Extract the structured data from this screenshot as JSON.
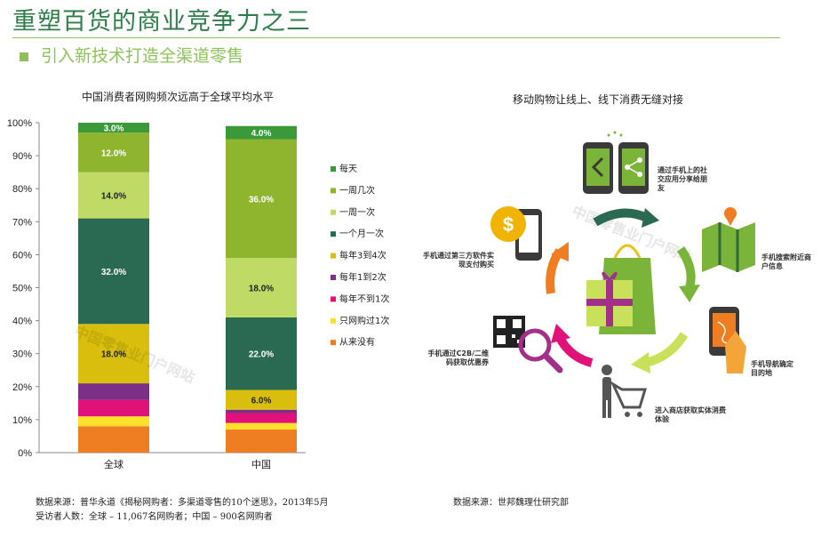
{
  "header": {
    "title": "重塑百货的商业竞争力之三",
    "subtitle": "引入新技术打造全渠道零售"
  },
  "left_chart": {
    "title": "中国消费者网购频次远高于全球平均水平",
    "source_line1": "数据来源：普华永道《揭秘网购者：多渠道零售的10个迷思》，2013年5月",
    "source_line2": "受访者人数：全球 – 11,067名网购者；中国 – 900名网购者"
  },
  "right_panel": {
    "title": "移动购物让线上、线下消费无缝对接",
    "source": "数据来源：世邦魏理仕研究部",
    "steps": [
      "通过手机上的社交应用分享给朋友",
      "手机搜索附近商户信息",
      "手机导航确定目的地",
      "进入商店获取实体消费体验",
      "手机通过C2B/二维码获取优惠券",
      "手机通过第三方软件实现支付购买"
    ]
  },
  "chart_data": {
    "type": "bar",
    "stacked": true,
    "categories": [
      "全球",
      "中国"
    ],
    "yticks": [
      "0%",
      "10%",
      "20%",
      "30%",
      "40%",
      "50%",
      "60%",
      "70%",
      "80%",
      "90%",
      "100%"
    ],
    "ylim": [
      0,
      100
    ],
    "legend_position": "right",
    "series": [
      {
        "name": "从来没有",
        "color": "#ef7d22",
        "values": [
          8.0,
          7.0
        ],
        "labels": [
          "",
          ""
        ]
      },
      {
        "name": "只网购过1次",
        "color": "#fde12a",
        "values": [
          3.0,
          2.0
        ],
        "labels": [
          "",
          ""
        ]
      },
      {
        "name": "每年不到1次",
        "color": "#e0127a",
        "values": [
          5.0,
          3.0
        ],
        "labels": [
          "",
          ""
        ]
      },
      {
        "name": "每年1到2次",
        "color": "#7b2f86",
        "values": [
          5.0,
          1.0
        ],
        "labels": [
          "",
          ""
        ]
      },
      {
        "name": "每年3到4次",
        "color": "#d9be0d",
        "values": [
          18.0,
          6.0
        ],
        "labels": [
          "18.0%",
          "6.0%"
        ]
      },
      {
        "name": "一个月一次",
        "color": "#2b6a52",
        "values": [
          32.0,
          22.0
        ],
        "labels": [
          "32.0%",
          "22.0%"
        ]
      },
      {
        "name": "一周一次",
        "color": "#bfda65",
        "values": [
          14.0,
          18.0
        ],
        "labels": [
          "14.0%",
          "18.0%"
        ]
      },
      {
        "name": "一周几次",
        "color": "#8fb52e",
        "values": [
          12.0,
          36.0
        ],
        "labels": [
          "12.0%",
          "36.0%"
        ]
      },
      {
        "name": "每天",
        "color": "#3a9a3a",
        "values": [
          3.0,
          4.0
        ],
        "labels": [
          "3.0%",
          "4.0%"
        ]
      }
    ]
  }
}
